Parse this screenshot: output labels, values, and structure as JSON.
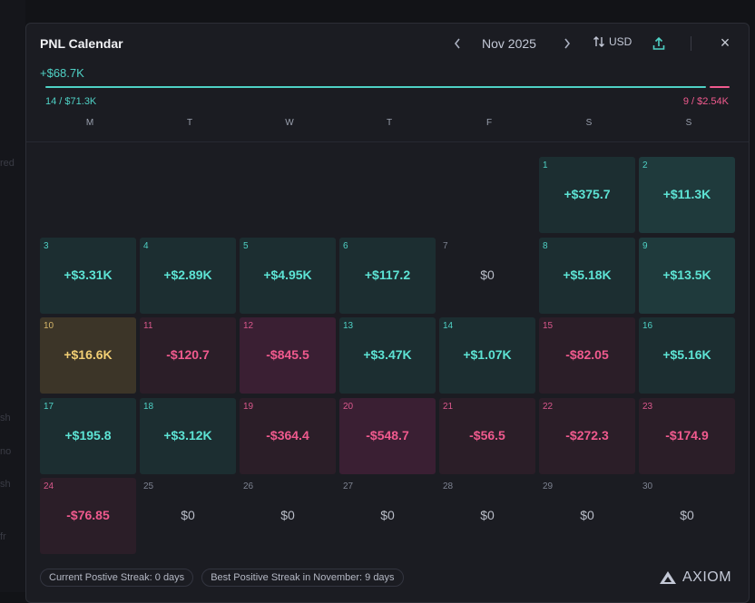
{
  "background_fragments": [
    "red",
    "sh",
    "no",
    "sh",
    "fr"
  ],
  "calendar": {
    "title": "PNL Calendar",
    "month": "Nov 2025",
    "prev_icon": "‹",
    "next_icon": "›",
    "currency": "USD",
    "close_icon": "×",
    "total": "+$68.7K",
    "positive_share": 0.965,
    "positive_stat": "14 / $71.3K",
    "negative_stat": "9 / $2.54K",
    "weekdays": [
      "M",
      "T",
      "W",
      "T",
      "F",
      "S",
      "S"
    ],
    "days": [
      {
        "day": "1",
        "value": "+$375.7",
        "tone": "pos-dim"
      },
      {
        "day": "2",
        "value": "+$11.3K",
        "tone": "pos"
      },
      {
        "day": "3",
        "value": "+$3.31K",
        "tone": "pos-dim"
      },
      {
        "day": "4",
        "value": "+$2.89K",
        "tone": "pos-dim"
      },
      {
        "day": "5",
        "value": "+$4.95K",
        "tone": "pos-dim"
      },
      {
        "day": "6",
        "value": "+$117.2",
        "tone": "pos-dim"
      },
      {
        "day": "7",
        "value": "$0",
        "tone": "zero"
      },
      {
        "day": "8",
        "value": "+$5.18K",
        "tone": "pos-dim"
      },
      {
        "day": "9",
        "value": "+$13.5K",
        "tone": "pos"
      },
      {
        "day": "10",
        "value": "+$16.6K",
        "tone": "gold"
      },
      {
        "day": "11",
        "value": "-$120.7",
        "tone": "neg-dim"
      },
      {
        "day": "12",
        "value": "-$845.5",
        "tone": "neg"
      },
      {
        "day": "13",
        "value": "+$3.47K",
        "tone": "pos-dim"
      },
      {
        "day": "14",
        "value": "+$1.07K",
        "tone": "pos-dim"
      },
      {
        "day": "15",
        "value": "-$82.05",
        "tone": "neg-dim"
      },
      {
        "day": "16",
        "value": "+$5.16K",
        "tone": "pos-dim"
      },
      {
        "day": "17",
        "value": "+$195.8",
        "tone": "pos-dim"
      },
      {
        "day": "18",
        "value": "+$3.12K",
        "tone": "pos-dim"
      },
      {
        "day": "19",
        "value": "-$364.4",
        "tone": "neg-dim"
      },
      {
        "day": "20",
        "value": "-$548.7",
        "tone": "neg"
      },
      {
        "day": "21",
        "value": "-$56.5",
        "tone": "neg-dim"
      },
      {
        "day": "22",
        "value": "-$272.3",
        "tone": "neg-dim"
      },
      {
        "day": "23",
        "value": "-$174.9",
        "tone": "neg-dim"
      },
      {
        "day": "24",
        "value": "-$76.85",
        "tone": "neg-dim"
      },
      {
        "day": "25",
        "value": "$0",
        "tone": "zero"
      },
      {
        "day": "26",
        "value": "$0",
        "tone": "zero"
      },
      {
        "day": "27",
        "value": "$0",
        "tone": "zero"
      },
      {
        "day": "28",
        "value": "$0",
        "tone": "zero"
      },
      {
        "day": "29",
        "value": "$0",
        "tone": "zero"
      },
      {
        "day": "30",
        "value": "$0",
        "tone": "zero"
      }
    ],
    "current_streak": "Current Postive Streak: 0 days",
    "best_streak": "Best Positive Streak in November: 9 days",
    "brand": "AXIOM"
  },
  "colors": {
    "positive": "#4fd1c5",
    "negative": "#f05a8e",
    "gold": "#f2cf74",
    "panel": "#1b1c22"
  },
  "icons": {
    "currency": "swap-vertical-icon",
    "share": "share-upload-icon",
    "close": "close-icon",
    "brand": "axiom-logo-icon"
  }
}
